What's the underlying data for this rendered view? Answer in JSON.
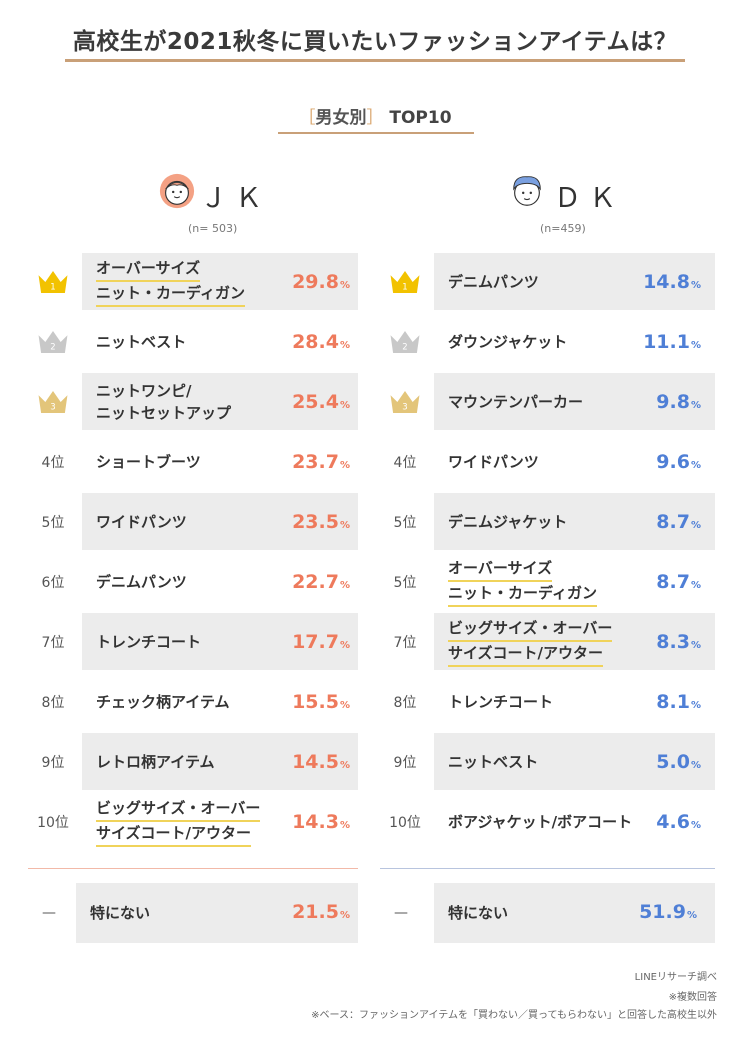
{
  "title": "高校生が2021秋冬に買いたいファッションアイテムは？",
  "subtitle": {
    "open": "［",
    "label": "男女別",
    "close": "］",
    "suffix": "TOP10"
  },
  "colors": {
    "jk_accent": "#ee7a5c",
    "dk_accent": "#4f7fd6",
    "gold": "#f2c200",
    "silver": "#c8c8c8",
    "bronze": "#e3c57a",
    "underline": "#f0d35a",
    "rule": "#c9a078"
  },
  "chart_data": [
    {
      "type": "table",
      "group": "ＪＫ",
      "n": "(n= 503)",
      "ranks": [
        "1",
        "2",
        "3",
        "4位",
        "5位",
        "6位",
        "7位",
        "8位",
        "9位",
        "10位"
      ],
      "items": [
        {
          "label": [
            "オーバーサイズ",
            "ニット・カーディガン"
          ],
          "value": "29.8",
          "underline": true
        },
        {
          "label": [
            "ニットベスト"
          ],
          "value": "28.4",
          "underline": false
        },
        {
          "label": [
            "ニットワンピ/",
            "ニットセットアップ"
          ],
          "value": "25.4",
          "underline": false
        },
        {
          "label": [
            "ショートブーツ"
          ],
          "value": "23.7",
          "underline": false
        },
        {
          "label": [
            "ワイドパンツ"
          ],
          "value": "23.5",
          "underline": false
        },
        {
          "label": [
            "デニムパンツ"
          ],
          "value": "22.7",
          "underline": false
        },
        {
          "label": [
            "トレンチコート"
          ],
          "value": "17.7",
          "underline": false
        },
        {
          "label": [
            "チェック柄アイテム"
          ],
          "value": "15.5",
          "underline": false
        },
        {
          "label": [
            "レトロ柄アイテム"
          ],
          "value": "14.5",
          "underline": false
        },
        {
          "label": [
            "ビッグサイズ・オーバー",
            "サイズコート/アウター"
          ],
          "value": "14.3",
          "underline": true
        }
      ],
      "none": {
        "dash": "—",
        "label": "特にない",
        "value": "21.5"
      },
      "unit": "%"
    },
    {
      "type": "table",
      "group": "ＤＫ",
      "n": "(n=459)",
      "ranks": [
        "1",
        "2",
        "3",
        "4位",
        "5位",
        "5位",
        "7位",
        "8位",
        "9位",
        "10位"
      ],
      "items": [
        {
          "label": [
            "デニムパンツ"
          ],
          "value": "14.8",
          "underline": false
        },
        {
          "label": [
            "ダウンジャケット"
          ],
          "value": "11.1",
          "underline": false
        },
        {
          "label": [
            "マウンテンパーカー"
          ],
          "value": "9.8",
          "underline": false
        },
        {
          "label": [
            "ワイドパンツ"
          ],
          "value": "9.6",
          "underline": false
        },
        {
          "label": [
            "デニムジャケット"
          ],
          "value": "8.7",
          "underline": false
        },
        {
          "label": [
            "オーバーサイズ",
            "ニット・カーディガン"
          ],
          "value": "8.7",
          "underline": true
        },
        {
          "label": [
            "ビッグサイズ・オーバー",
            "サイズコート/アウター"
          ],
          "value": "8.3",
          "underline": true
        },
        {
          "label": [
            "トレンチコート"
          ],
          "value": "8.1",
          "underline": false
        },
        {
          "label": [
            "ニットベスト"
          ],
          "value": "5.0",
          "underline": false
        },
        {
          "label": [
            "ボアジャケット/ボアコート"
          ],
          "value": "4.6",
          "underline": false
        }
      ],
      "none": {
        "dash": "—",
        "label": "特にない",
        "value": "51.9"
      },
      "unit": "%"
    }
  ],
  "footer": {
    "source": "LINEリサーチ調べ",
    "multi": "※複数回答",
    "base": "※ベース：ファッションアイテムを「買わない／買ってもらわない」と回答した高校生以外"
  }
}
